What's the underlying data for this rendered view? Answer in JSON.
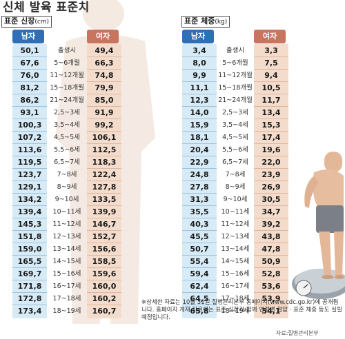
{
  "title": "신체 발육 표준치",
  "height_section": {
    "label": "표준 신장",
    "unit": "(cm)",
    "male_header": "남자",
    "female_header": "여자",
    "rows": [
      {
        "male": "50,1",
        "age": "출생시",
        "female": "49,4"
      },
      {
        "male": "67,6",
        "age": "5~6개월",
        "female": "66,3"
      },
      {
        "male": "76,0",
        "age": "11~12개월",
        "female": "74,8"
      },
      {
        "male": "81,2",
        "age": "15~18개월",
        "female": "79,9"
      },
      {
        "male": "86,2",
        "age": "21~24개월",
        "female": "85,0"
      },
      {
        "male": "93,1",
        "age": "2,5~3세",
        "female": "91,9"
      },
      {
        "male": "100,3",
        "age": "3,5~4세",
        "female": "99,2"
      },
      {
        "male": "107,2",
        "age": "4,5~5세",
        "female": "106,1"
      },
      {
        "male": "113,6",
        "age": "5,5~6세",
        "female": "112,5"
      },
      {
        "male": "119,5",
        "age": "6,5~7세",
        "female": "118,3"
      },
      {
        "male": "123,7",
        "age": "7~8세",
        "female": "122,4"
      },
      {
        "male": "129,1",
        "age": "8~9세",
        "female": "127,8"
      },
      {
        "male": "134,2",
        "age": "9~10세",
        "female": "133,5"
      },
      {
        "male": "139,4",
        "age": "10~11세",
        "female": "139,9"
      },
      {
        "male": "145,3",
        "age": "11~12세",
        "female": "146,7"
      },
      {
        "male": "151,8",
        "age": "12~13세",
        "female": "152,7"
      },
      {
        "male": "159,0",
        "age": "13~14세",
        "female": "156,6"
      },
      {
        "male": "165,5",
        "age": "14~15세",
        "female": "158,5"
      },
      {
        "male": "169,7",
        "age": "15~16세",
        "female": "159,6"
      },
      {
        "male": "171,8",
        "age": "16~17세",
        "female": "160,0"
      },
      {
        "male": "172,8",
        "age": "17~18세",
        "female": "160,2"
      },
      {
        "male": "173,4",
        "age": "18~19세",
        "female": "160,7"
      }
    ]
  },
  "weight_section": {
    "label": "표준 체중",
    "unit": "(kg)",
    "male_header": "남자",
    "female_header": "여자",
    "rows": [
      {
        "male": "3,4",
        "age": "출생시",
        "female": "3,3"
      },
      {
        "male": "8,0",
        "age": "5~6개월",
        "female": "7,5"
      },
      {
        "male": "9,9",
        "age": "11~12개월",
        "female": "9,4"
      },
      {
        "male": "11,1",
        "age": "15~18개월",
        "female": "10,5"
      },
      {
        "male": "12,3",
        "age": "21~24개월",
        "female": "11,7"
      },
      {
        "male": "14,0",
        "age": "2,5~3세",
        "female": "13,4"
      },
      {
        "male": "15,9",
        "age": "3,5~4세",
        "female": "15,3"
      },
      {
        "male": "18,1",
        "age": "4,5~5세",
        "female": "17,4"
      },
      {
        "male": "20,4",
        "age": "5,5~6세",
        "female": "19,6"
      },
      {
        "male": "22,9",
        "age": "6,5~7세",
        "female": "22,0"
      },
      {
        "male": "24,8",
        "age": "7~8세",
        "female": "23,9"
      },
      {
        "male": "27,8",
        "age": "8~9세",
        "female": "26,9"
      },
      {
        "male": "31,3",
        "age": "9~10세",
        "female": "30,5"
      },
      {
        "male": "35,5",
        "age": "10~11세",
        "female": "34,7"
      },
      {
        "male": "40,3",
        "age": "11~12세",
        "female": "39,2"
      },
      {
        "male": "45,5",
        "age": "12~13세",
        "female": "43,8"
      },
      {
        "male": "50,7",
        "age": "13~14세",
        "female": "47,8"
      },
      {
        "male": "55,4",
        "age": "14~15세",
        "female": "50,9"
      },
      {
        "male": "59,4",
        "age": "15~16세",
        "female": "52,8"
      },
      {
        "male": "62,4",
        "age": "16~17세",
        "female": "53,6"
      },
      {
        "male": "64,5",
        "age": "17~18세",
        "female": "53,9"
      },
      {
        "male": "65,8",
        "age": "18~19세",
        "female": "54,1"
      }
    ]
  },
  "footnote": "※상세한 자료는 10월 31일 질병관리본부 홈페이지(www.cdc.go.kr)에 공개됩니다. 홈페이지 게재 자료에는 표준 신장과 함께 연령별 혈압 · 표준 체중 등도 실릴 예정입니다.",
  "source": "자료:질병관리본부",
  "colors": {
    "male_header": "#2f6fb7",
    "female_header": "#c8745e",
    "male_column": "#d7ebf7",
    "female_column": "#f3dccb"
  }
}
